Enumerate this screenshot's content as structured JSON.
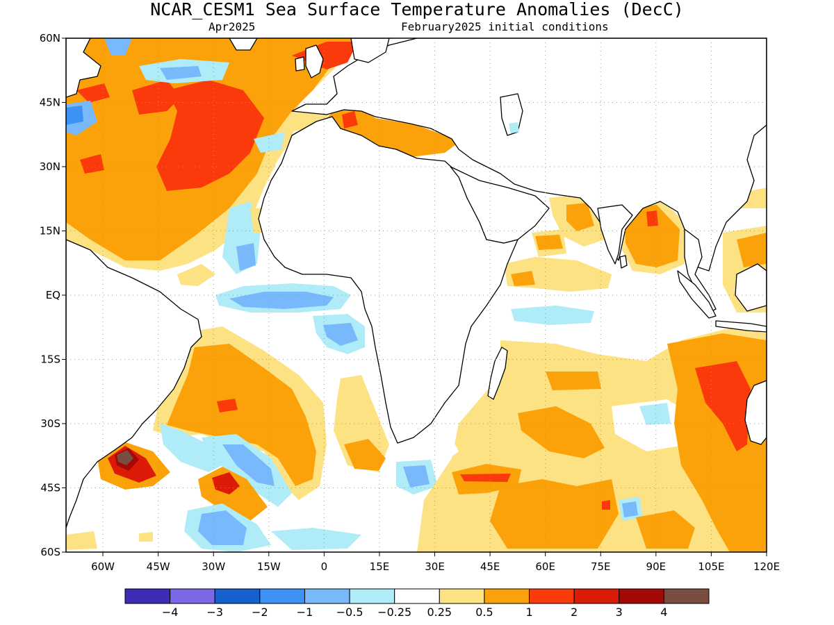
{
  "header": {
    "title": "NCAR_CESM1 Sea Surface Temperature Anomalies (DecC)",
    "subtitle_left": "Apr2025",
    "subtitle_right": "February2025 initial conditions"
  },
  "map": {
    "lat_labels": [
      "60N",
      "45N",
      "30N",
      "15N",
      "EQ",
      "15S",
      "30S",
      "45S",
      "60S"
    ],
    "lon_labels": [
      "60W",
      "45W",
      "30W",
      "15W",
      "0",
      "15E",
      "30E",
      "45E",
      "60E",
      "75E",
      "90E",
      "105E",
      "120E"
    ],
    "lat_values": [
      60,
      45,
      30,
      15,
      0,
      -15,
      -30,
      -45,
      -60
    ],
    "lon_values": [
      -60,
      -45,
      -30,
      -15,
      0,
      15,
      30,
      45,
      60,
      75,
      90,
      105,
      120
    ],
    "lat_range": [
      -60,
      60
    ],
    "lon_range": [
      -70,
      120
    ],
    "grid": "dotted"
  },
  "colorbar": {
    "colors": [
      "#3d2db4",
      "#7b68e6",
      "#1660d0",
      "#3c92f5",
      "#78b9fb",
      "#b0ecf8",
      "#ffffff",
      "#fde283",
      "#fba20a",
      "#fb3a0c",
      "#dc1a08",
      "#a10a05",
      "#7a4d41"
    ],
    "labels": [
      "-4",
      "-3",
      "-2",
      "-1",
      "-0.5",
      "-0.25",
      "0.25",
      "0.5",
      "1",
      "2",
      "3",
      "4"
    ]
  },
  "anomaly_palette": {
    "light_orange": "#fde283",
    "orange": "#fba20a",
    "red_orange": "#fb3a0c",
    "red": "#dc1a08",
    "dark_red": "#a10a05",
    "brown": "#7a4d41",
    "light_cyan": "#b0ecf8",
    "light_blue": "#78b9fb",
    "blue": "#3c92f5"
  }
}
